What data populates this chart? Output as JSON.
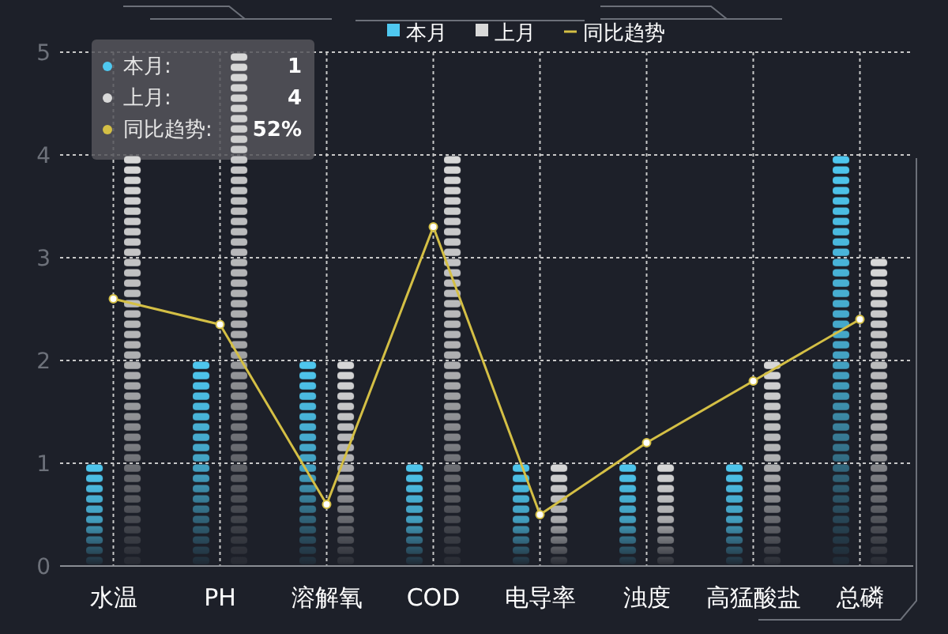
{
  "chart_data": {
    "type": "bar",
    "categories": [
      "水温",
      "PH",
      "溶解氧",
      "COD",
      "电导率",
      "浊度",
      "高猛酸盐",
      "总磷"
    ],
    "series": [
      {
        "name": "本月",
        "color": "#4fc8f0",
        "values": [
          1,
          2,
          2,
          1,
          1,
          1,
          1,
          4
        ]
      },
      {
        "name": "上月",
        "color": "#d9d9d9",
        "values": [
          4,
          5,
          2,
          4,
          1,
          1,
          2,
          3
        ]
      },
      {
        "name": "同比趋势",
        "type": "line",
        "color": "#d4bf45",
        "values": [
          2.6,
          2.35,
          0.6,
          3.3,
          0.5,
          1.2,
          1.8,
          2.4
        ]
      }
    ],
    "ylim": [
      0,
      5
    ],
    "yticks": [
      0,
      1,
      2,
      3,
      4,
      5
    ],
    "grid": true,
    "legend": "top",
    "marker": "circle",
    "annotations": [
      "本月:",
      "1",
      "上月:",
      "4",
      "同比趋势:",
      "52%"
    ]
  }
}
